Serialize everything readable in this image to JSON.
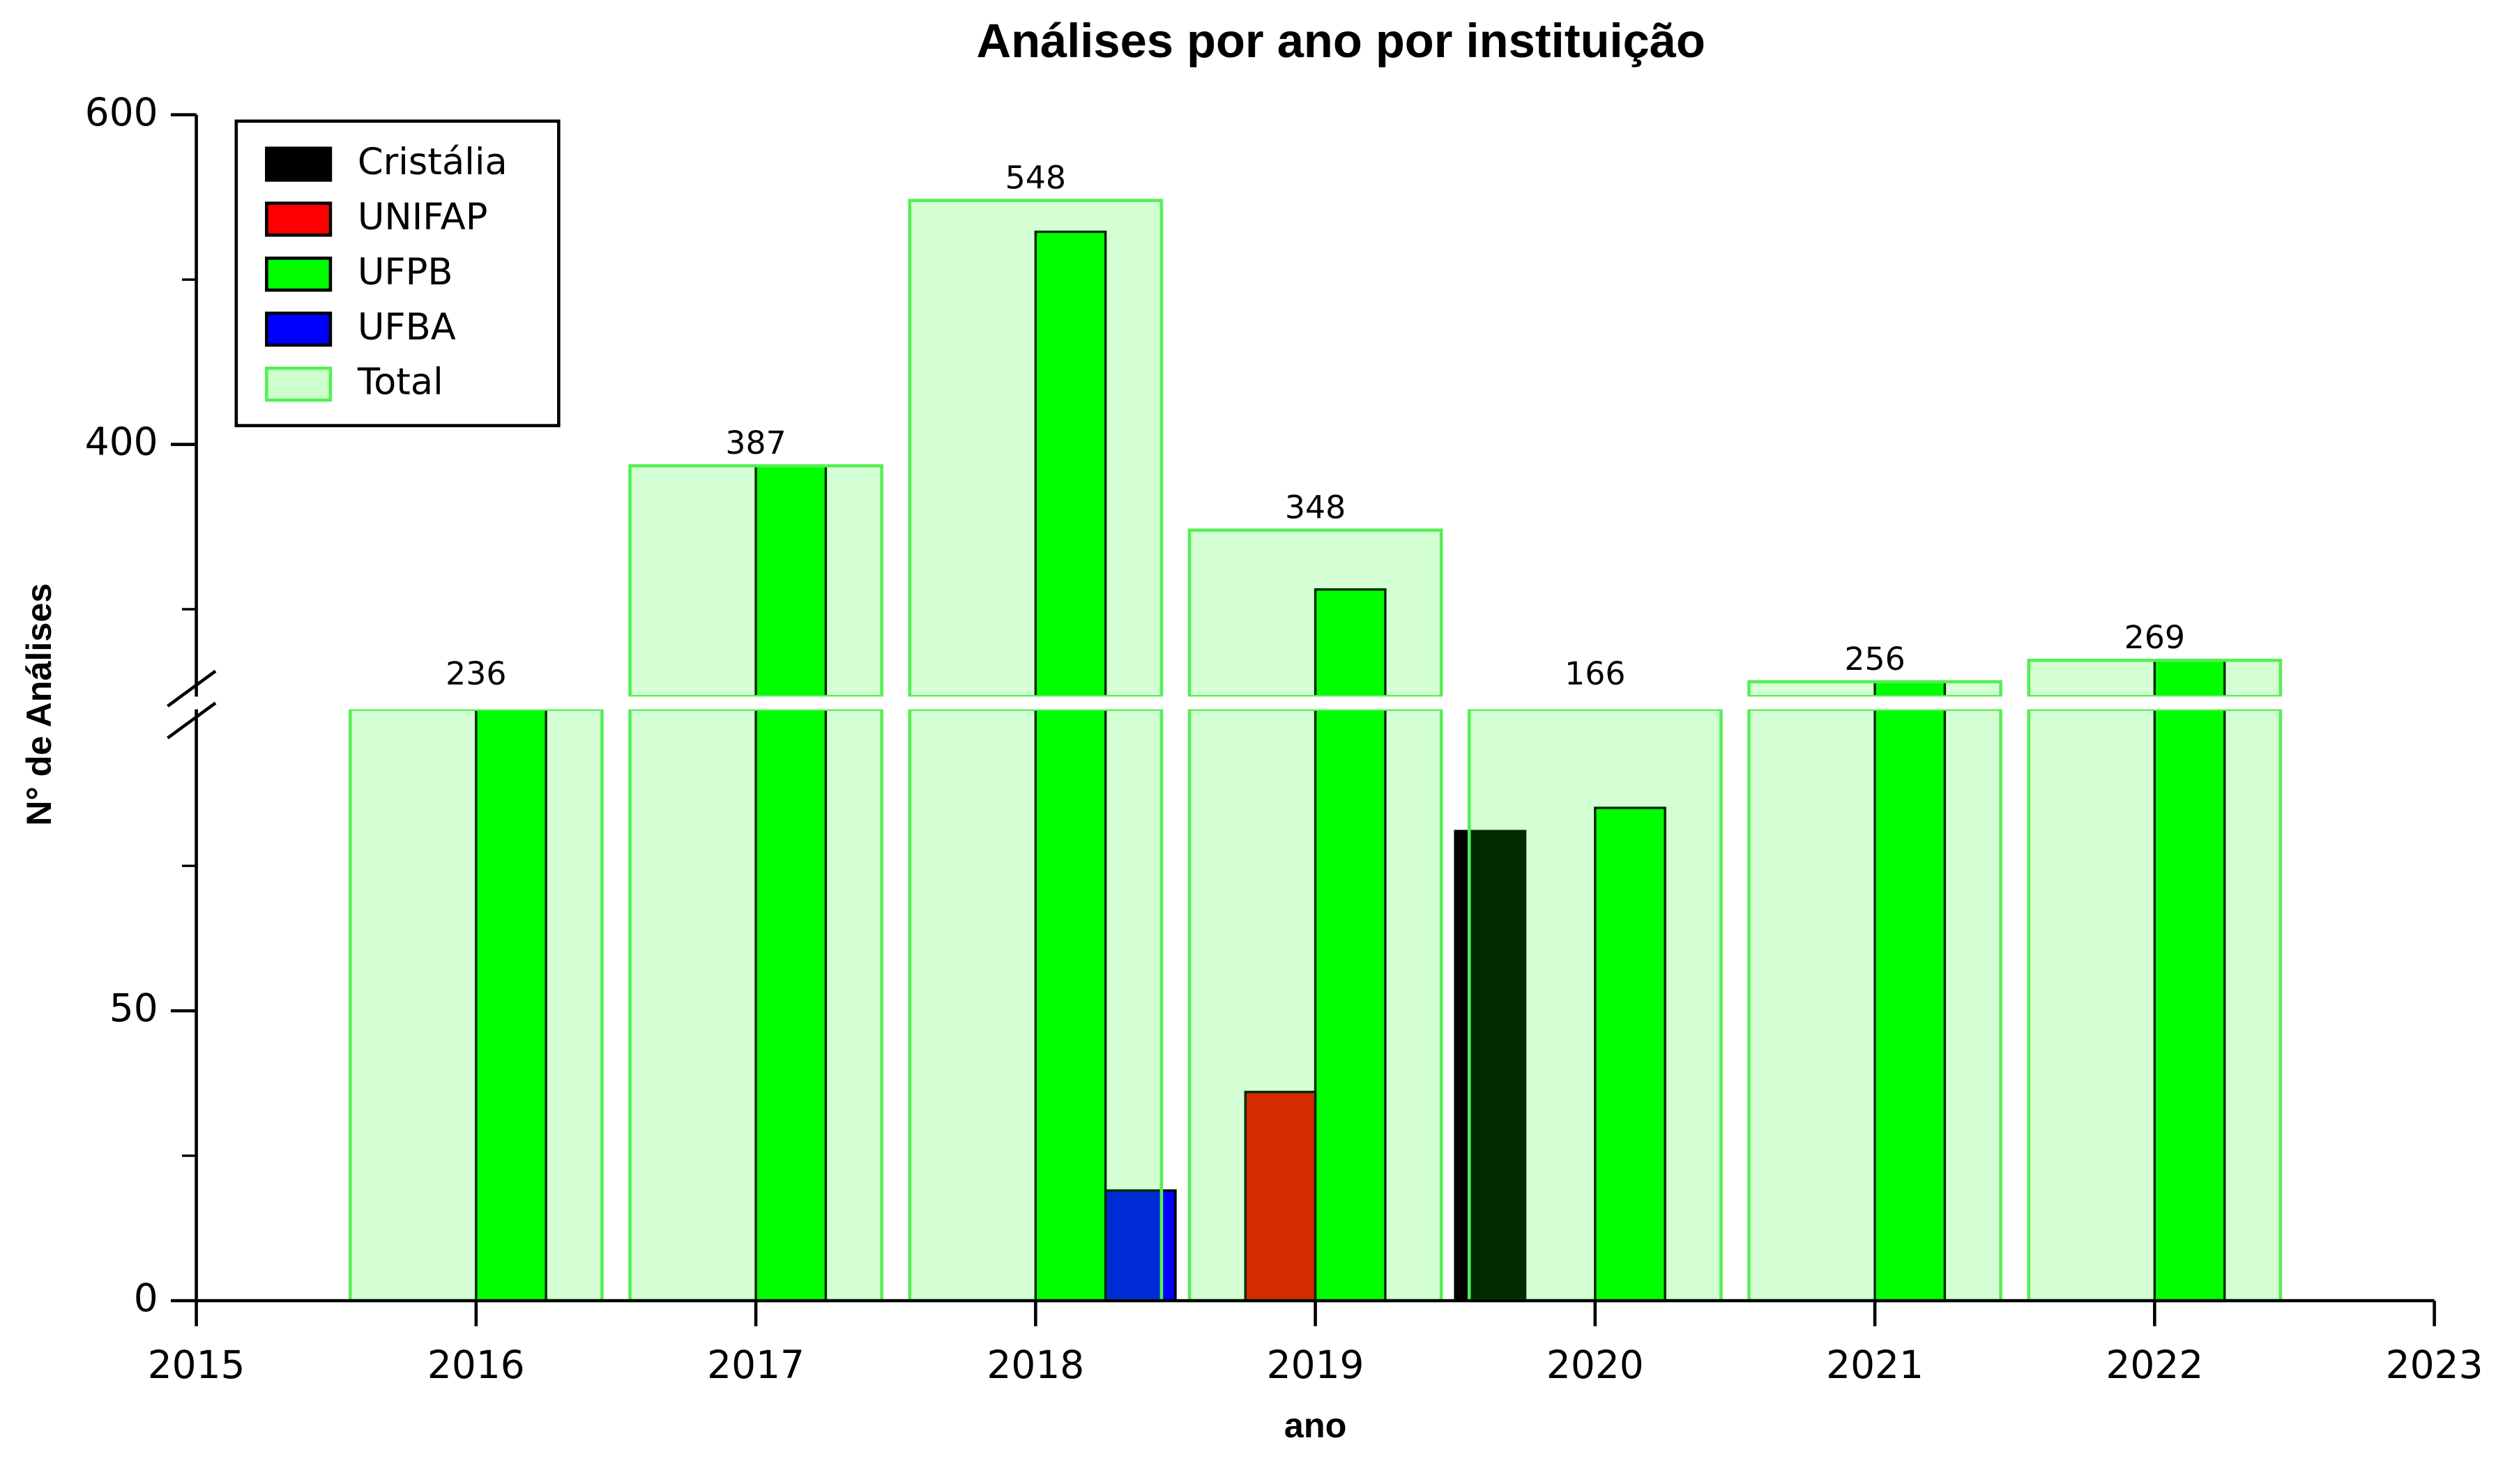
{
  "chart_data": {
    "type": "broken-axis-bar",
    "title": "Análises por ano por instituição",
    "x_label": "ano",
    "y_label": "N° de Análises",
    "x": [
      2016,
      2017,
      2018,
      2019,
      2020,
      2021,
      2022
    ],
    "xlim": [
      2015,
      2023
    ],
    "xticks": [
      2015,
      2016,
      2017,
      2018,
      2019,
      2020,
      2021,
      2022,
      2023
    ],
    "ylim_lower": [
      0,
      102
    ],
    "yticks_lower": [
      0,
      50
    ],
    "yminor_lower": [
      25,
      75
    ],
    "ylim_upper": [
      247,
      600
    ],
    "yticks_upper": [
      400,
      600
    ],
    "yminor_upper": [
      300,
      500
    ],
    "legend": "upper left",
    "series": [
      {
        "name": "Cristália",
        "color": "#000000",
        "values": [
          0,
          0,
          0,
          0,
          81,
          0,
          0
        ]
      },
      {
        "name": "UNIFAP",
        "color": "#ff0000",
        "values": [
          0,
          0,
          0,
          36,
          0,
          0,
          0
        ]
      },
      {
        "name": "UFPB",
        "color": "#00ff00",
        "values": [
          236,
          387,
          529,
          312,
          85,
          256,
          269
        ]
      },
      {
        "name": "UFBA",
        "color": "#0000ff",
        "values": [
          0,
          0,
          19,
          0,
          0,
          0,
          0
        ]
      }
    ],
    "total": {
      "name": "Total",
      "color": "#00ff00",
      "values": [
        236,
        387,
        548,
        348,
        166,
        256,
        269
      ]
    }
  }
}
